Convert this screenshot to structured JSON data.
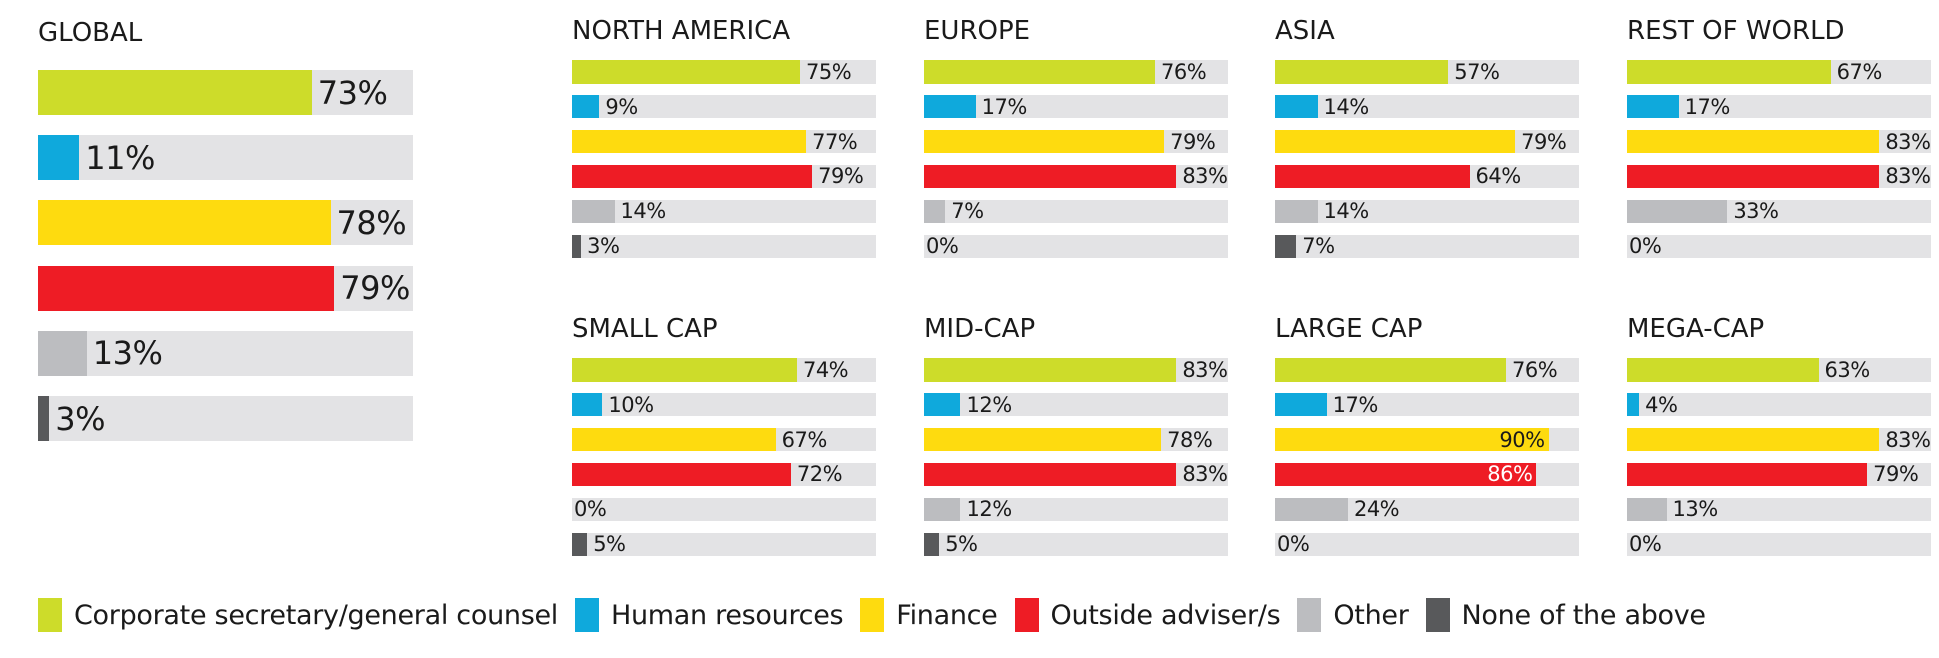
{
  "chart_data": {
    "type": "bar",
    "orientation": "horizontal",
    "value_unit": "%",
    "xlim": [
      0,
      100
    ],
    "categories": [
      "Corporate secretary/general counsel",
      "Human resources",
      "Finance",
      "Outside adviser/s",
      "Other",
      "None of the above"
    ],
    "colors": [
      "#cddc2a",
      "#0fa9dc",
      "#fedb0f",
      "#ee1c25",
      "#bcbdc0",
      "#58595b"
    ],
    "legend": {
      "position": "bottom",
      "labels": [
        "Corporate secretary/general counsel",
        "Human resources",
        "Finance",
        "Outside adviser/s",
        "Other",
        "None of the above"
      ]
    },
    "panels": [
      {
        "title": "GLOBAL",
        "values": [
          73,
          11,
          78,
          79,
          13,
          3
        ]
      },
      {
        "title": "NORTH AMERICA",
        "values": [
          75,
          9,
          77,
          79,
          14,
          3
        ]
      },
      {
        "title": "EUROPE",
        "values": [
          76,
          17,
          79,
          83,
          7,
          0
        ]
      },
      {
        "title": "ASIA",
        "values": [
          57,
          14,
          79,
          64,
          14,
          7
        ]
      },
      {
        "title": "REST OF WORLD",
        "values": [
          67,
          17,
          83,
          83,
          33,
          0
        ]
      },
      {
        "title": "SMALL CAP",
        "values": [
          74,
          10,
          67,
          72,
          0,
          5
        ]
      },
      {
        "title": "MID-CAP",
        "values": [
          83,
          12,
          78,
          83,
          12,
          5
        ]
      },
      {
        "title": "LARGE CAP",
        "values": [
          76,
          17,
          90,
          86,
          24,
          0
        ],
        "labels_inside": [
          false,
          false,
          true,
          true,
          false,
          false
        ]
      },
      {
        "title": "MEGA-CAP",
        "values": [
          63,
          4,
          83,
          79,
          13,
          0
        ]
      }
    ]
  }
}
